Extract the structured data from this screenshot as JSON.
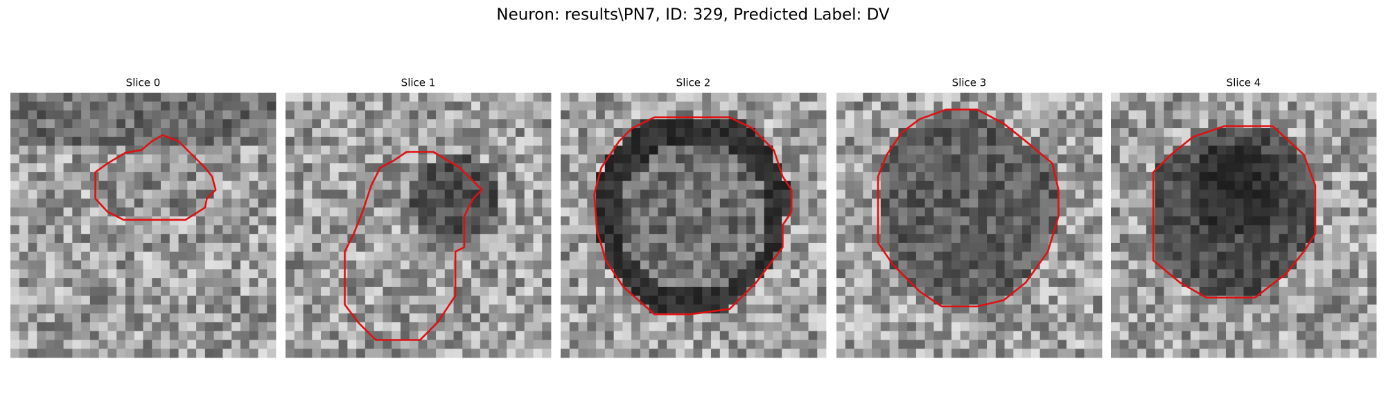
{
  "title": "Neuron: results\\PN7, ID: 329, Predicted Label: DV",
  "panels": [
    {
      "title": "Slice 0"
    },
    {
      "title": "Slice 1"
    },
    {
      "title": "Slice 2"
    },
    {
      "title": "Slice 3"
    },
    {
      "title": "Slice 4"
    }
  ]
}
